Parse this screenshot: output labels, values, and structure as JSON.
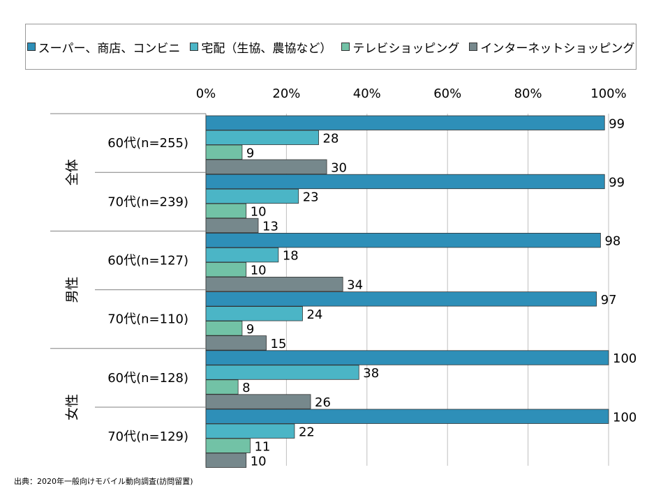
{
  "legend": [
    {
      "label": "スーパー、商店、コンビニ",
      "color": "#2E8FB8"
    },
    {
      "label": "宅配（生協、農協など）",
      "color": "#4BB5C6"
    },
    {
      "label": "テレビショッピング",
      "color": "#72C2A6"
    },
    {
      "label": "インターネットショッピング",
      "color": "#76888C"
    }
  ],
  "source": "出典：2020年一般向けモバイル動向調査(訪問留置)",
  "chart_data": {
    "type": "bar",
    "orientation": "horizontal",
    "x_ticks": [
      "0%",
      "20%",
      "40%",
      "60%",
      "80%",
      "100%"
    ],
    "xlim": [
      0,
      100
    ],
    "grid": true,
    "legend_position": "top",
    "groups": [
      {
        "label": "全体",
        "rows": [
          {
            "label": "60代(n=255)",
            "values": [
              99,
              28,
              9,
              30
            ]
          },
          {
            "label": "70代(n=239)",
            "values": [
              99,
              23,
              10,
              13
            ]
          }
        ]
      },
      {
        "label": "男性",
        "rows": [
          {
            "label": "60代(n=127)",
            "values": [
              98,
              18,
              10,
              34
            ]
          },
          {
            "label": "70代(n=110)",
            "values": [
              97,
              24,
              9,
              15
            ]
          }
        ]
      },
      {
        "label": "女性",
        "rows": [
          {
            "label": "60代(n=128)",
            "values": [
              100,
              38,
              8,
              26
            ]
          },
          {
            "label": "70代(n=129)",
            "values": [
              100,
              22,
              11,
              10
            ]
          }
        ]
      }
    ],
    "series": [
      {
        "name": "スーパー、商店、コンビニ"
      },
      {
        "name": "宅配（生協、農協など）"
      },
      {
        "name": "テレビショッピング"
      },
      {
        "name": "インターネットショッピング"
      }
    ]
  }
}
